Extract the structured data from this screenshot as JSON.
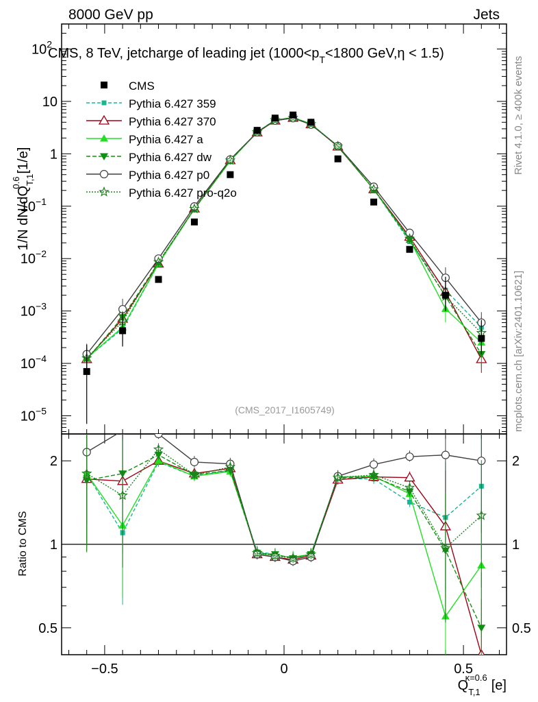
{
  "header": {
    "left": "8000 GeV pp",
    "right": "Jets"
  },
  "side_labels": {
    "rivet": "Rivet 4.1.0, ≥ 400k events",
    "mcplots": "mcplots.cern.ch [arXiv:2401.10621]"
  },
  "chart_data": {
    "type": "scatter",
    "title": "CMS, 8 TeV, jetcharge of leading jet (1000<p_T<1800 GeV,|η| < 1.5)",
    "title_parts": {
      "pre": "CMS, 8 TeV, jetcharge of leading jet (1000<p",
      "sub": "T",
      "post": "<1800 GeV,η < 1.5)"
    },
    "analysis_id": "(CMS_2017_I1605749)",
    "ylabel": "1/N dN/dQ_T,1^0.6 [1/e]",
    "ylabel_parts": {
      "main": "1/N dN/dQ",
      "sub": "T,1",
      "sup": "0.6",
      "unit": "[1/e]"
    },
    "xlabel": "Q_T,1^κ=0.6 [e]",
    "xlabel_parts": {
      "main": "Q",
      "sub": "T,1",
      "sup": "κ=0.6",
      "unit": "[e]"
    },
    "ratio_ylabel": "Ratio to CMS",
    "xlim": [
      -0.62,
      0.62
    ],
    "ylim": [
      4.5e-06,
      300
    ],
    "yscale": "log",
    "ratio_ylim": [
      0.4,
      2.5
    ],
    "ratio_yscale": "log",
    "x_ticks": [
      -0.5,
      0,
      0.5
    ],
    "x_tick_labels": [
      "−0.5",
      "0",
      "0.5"
    ],
    "y_ticks": [
      100,
      10,
      1,
      0.1,
      0.01,
      0.001,
      0.0001,
      1e-05
    ],
    "y_tick_labels": [
      {
        "base": "10",
        "exp": "2"
      },
      {
        "base": "10",
        "exp": ""
      },
      {
        "base": "1",
        "exp": ""
      },
      {
        "base": "10",
        "exp": "−1"
      },
      {
        "base": "10",
        "exp": "−2"
      },
      {
        "base": "10",
        "exp": "−3"
      },
      {
        "base": "10",
        "exp": "−4"
      },
      {
        "base": "10",
        "exp": "−5"
      }
    ],
    "ratio_ticks": [
      2,
      1,
      0.5
    ],
    "ratio_tick_labels": [
      "2",
      "1",
      "0.5"
    ],
    "x": [
      -0.55,
      -0.45,
      -0.35,
      -0.25,
      -0.15,
      -0.075,
      -0.025,
      0.025,
      0.075,
      0.15,
      0.25,
      0.35,
      0.45,
      0.55
    ],
    "data": {
      "name": "CMS",
      "values": [
        7e-05,
        0.00042,
        0.004,
        0.05,
        0.4,
        2.8,
        4.8,
        5.5,
        4.0,
        0.8,
        0.12,
        0.015,
        0.002,
        0.0003
      ]
    },
    "series": [
      {
        "name": "Pythia 6.427 359",
        "color": "#17b890",
        "dash": "5,3",
        "marker": "square-filled",
        "values": [
          0.000126,
          0.00046,
          0.0079,
          0.088,
          0.74,
          2.6,
          4.4,
          4.9,
          3.7,
          1.38,
          0.21,
          0.021,
          0.0025,
          0.00049
        ],
        "ratio": [
          1.8,
          1.1,
          1.98,
          1.76,
          1.85,
          0.94,
          0.92,
          0.89,
          0.92,
          1.73,
          1.72,
          1.42,
          1.25,
          1.62
        ]
      },
      {
        "name": "Pythia 6.427 370",
        "color": "#a00014",
        "dash": "",
        "marker": "triangle-open",
        "values": [
          0.00012,
          0.00071,
          0.008,
          0.09,
          0.75,
          2.55,
          4.3,
          4.85,
          3.65,
          1.37,
          0.21,
          0.026,
          0.0023,
          0.00012
        ],
        "ratio": [
          1.72,
          1.69,
          2.0,
          1.8,
          1.88,
          0.92,
          0.9,
          0.88,
          0.91,
          1.71,
          1.75,
          1.74,
          1.16,
          0.4
        ]
      },
      {
        "name": "Pythia 6.427 a",
        "color": "#20e020",
        "dash": "",
        "marker": "triangle-filled",
        "values": [
          0.000126,
          0.00049,
          0.008,
          0.088,
          0.73,
          2.6,
          4.35,
          4.95,
          3.7,
          1.4,
          0.21,
          0.023,
          0.0011,
          0.00025
        ],
        "ratio": [
          1.8,
          1.17,
          2.0,
          1.76,
          1.83,
          0.93,
          0.91,
          0.9,
          0.92,
          1.75,
          1.76,
          1.52,
          0.55,
          0.84
        ]
      },
      {
        "name": "Pythia 6.427 dw",
        "color": "#109010",
        "dash": "6,3",
        "marker": "triangle-down-filled",
        "values": [
          0.00012,
          0.00076,
          0.0084,
          0.089,
          0.74,
          2.6,
          4.4,
          4.9,
          3.7,
          1.39,
          0.21,
          0.023,
          0.0019,
          0.00015
        ],
        "ratio": [
          1.7,
          1.8,
          2.1,
          1.78,
          1.85,
          0.93,
          0.92,
          0.89,
          0.92,
          1.74,
          1.75,
          1.55,
          0.95,
          0.5
        ]
      },
      {
        "name": "Pythia 6.427 p0",
        "color": "#404040",
        "dash": "",
        "marker": "circle-open",
        "values": [
          0.00015,
          0.00108,
          0.01,
          0.099,
          0.78,
          2.58,
          4.3,
          4.8,
          3.6,
          1.41,
          0.235,
          0.031,
          0.0043,
          0.0006
        ],
        "ratio": [
          2.15,
          2.57,
          2.5,
          1.98,
          1.95,
          0.92,
          0.9,
          0.87,
          0.9,
          1.76,
          1.94,
          2.07,
          2.1,
          2.0
        ]
      },
      {
        "name": "Pythia 6.427 pro-q2o",
        "color": "#208020",
        "dash": "2,2",
        "marker": "star-open",
        "values": [
          0.000126,
          0.00063,
          0.0086,
          0.089,
          0.75,
          2.6,
          4.4,
          4.9,
          3.7,
          1.39,
          0.21,
          0.024,
          0.0019,
          0.00038
        ],
        "ratio": [
          1.8,
          1.5,
          2.2,
          1.78,
          1.9,
          0.93,
          0.91,
          0.89,
          0.92,
          1.74,
          1.78,
          1.6,
          0.97,
          1.27
        ]
      }
    ]
  }
}
